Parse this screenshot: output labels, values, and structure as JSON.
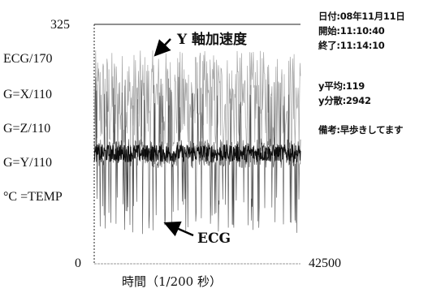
{
  "chart_data": {
    "type": "line",
    "title": "",
    "xlabel": "時間（1/200 秒）",
    "ylabel": "",
    "xlim": [
      0,
      42500
    ],
    "ylim": [
      0,
      325
    ],
    "x_tick_labels": [
      "0",
      "42500"
    ],
    "y_tick_labels": [
      "325",
      "ECG/170",
      "G=X/110",
      "G=Z/110",
      "G=Y/110",
      "°C =TEMP",
      "0"
    ],
    "series": [
      {
        "name": "Y 軸加速度",
        "color": "#9a9a9a",
        "description_band": [
          120,
          290
        ]
      },
      {
        "name": "ECG",
        "color": "#3a3a3a",
        "description_band": [
          40,
          260
        ]
      }
    ],
    "annotations": [
      {
        "text": "Y 軸加速度"
      },
      {
        "text": "ECG"
      }
    ],
    "grid": false,
    "legend": "none"
  },
  "info_panel": {
    "date": "日付:08年11月11日",
    "start": "開始:11:10:40",
    "end": "終了:11:14:10",
    "y_mean": "y平均:119",
    "y_variance": "y分散:2942",
    "note": "備考:早歩きしてます"
  },
  "colors": {
    "accel": "#9a9a9a",
    "ecg": "#2a2a2a",
    "axis": "#222222",
    "baseline": "#cccccc"
  }
}
